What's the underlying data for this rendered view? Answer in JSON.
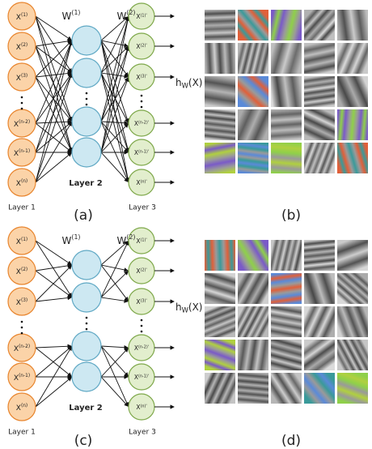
{
  "network_a": {
    "inputs": [
      {
        "base": "X",
        "sup": "(1)"
      },
      {
        "base": "X",
        "sup": "(2)"
      },
      {
        "base": "X",
        "sup": "(3)"
      },
      {
        "base": "X",
        "sup": "(n-2)"
      },
      {
        "base": "X",
        "sup": "(n-1)"
      },
      {
        "base": "X",
        "sup": "(n)"
      }
    ],
    "outputs": [
      {
        "base": "X",
        "sup": "(1)'"
      },
      {
        "base": "X",
        "sup": "(2)'"
      },
      {
        "base": "X",
        "sup": "(3)'"
      },
      {
        "base": "X",
        "sup": "(n-2)'"
      },
      {
        "base": "X",
        "sup": "(n-1)'"
      },
      {
        "base": "X",
        "sup": "(n)'"
      }
    ],
    "w1": {
      "base": "W",
      "sup": "(1)"
    },
    "w2": {
      "base": "W",
      "sup": "(2)"
    },
    "output_label": {
      "base": "h",
      "sub": "W",
      "tail": "(X)"
    },
    "layer1": "Layer 1",
    "layer2": "Layer 2",
    "layer3": "Layer 3"
  },
  "network_c": {
    "inputs": [
      {
        "base": "X",
        "sup": "(1)"
      },
      {
        "base": "X",
        "sup": "(2)"
      },
      {
        "base": "X",
        "sup": "(3)"
      },
      {
        "base": "X",
        "sup": "(n-2)"
      },
      {
        "base": "X",
        "sup": "(n-1)"
      },
      {
        "base": "X",
        "sup": "(n)"
      }
    ],
    "outputs": [
      {
        "base": "X",
        "sup": "(1)'"
      },
      {
        "base": "X",
        "sup": "(2)'"
      },
      {
        "base": "X",
        "sup": "(3)'"
      },
      {
        "base": "X",
        "sup": "(n-2)'"
      },
      {
        "base": "X",
        "sup": "(n-1)'"
      },
      {
        "base": "X",
        "sup": "(n)'"
      }
    ],
    "w1": {
      "base": "W",
      "sup": "(1)"
    },
    "w2": {
      "base": "W",
      "sup": "(2)"
    },
    "output_label": {
      "base": "h",
      "sub": "W",
      "tail": "(X)"
    },
    "layer1": "Layer 1",
    "layer2": "Layer 2",
    "layer3": "Layer 3"
  },
  "panel_labels": [
    "(a)",
    "(b)",
    "(c)",
    "(d)"
  ]
}
